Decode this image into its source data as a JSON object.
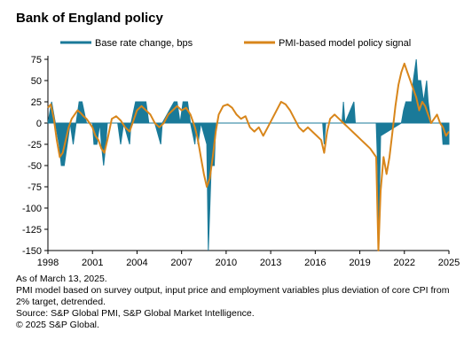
{
  "title": "Bank of England policy",
  "footnotes": [
    "As of March 13, 2025.",
    "PMI model based on survey output, input price and employment variables plus deviation of core CPI from 2% target, detrended.",
    "Source: S&P Global PMI, S&P Global Market Intelligence.",
    "© 2025 S&P Global."
  ],
  "chart_data": {
    "type": "area+line",
    "title": "Bank of England policy",
    "xlabel": "",
    "ylabel": "",
    "xlim": [
      1998,
      2025
    ],
    "ylim": [
      -150,
      75
    ],
    "xticks": [
      1998,
      2001,
      2004,
      2007,
      2010,
      2013,
      2016,
      2019,
      2022,
      2025
    ],
    "yticks": [
      75,
      50,
      25,
      0,
      -25,
      -50,
      -75,
      -100,
      -125,
      -150
    ],
    "grid": false,
    "legend_position": "top",
    "series": [
      {
        "name": "Base rate change, bps",
        "type": "area",
        "color": "#1a7a99",
        "points": [
          [
            1998.0,
            0
          ],
          [
            1998.25,
            25
          ],
          [
            1998.5,
            0
          ],
          [
            1998.75,
            -25
          ],
          [
            1998.9,
            -50
          ],
          [
            1999.1,
            -50
          ],
          [
            1999.3,
            -25
          ],
          [
            1999.5,
            0
          ],
          [
            1999.7,
            -25
          ],
          [
            1999.9,
            0
          ],
          [
            2000.1,
            25
          ],
          [
            2000.3,
            25
          ],
          [
            2000.6,
            0
          ],
          [
            2001.0,
            0
          ],
          [
            2001.1,
            -25
          ],
          [
            2001.3,
            -25
          ],
          [
            2001.5,
            0
          ],
          [
            2001.6,
            -25
          ],
          [
            2001.75,
            -50
          ],
          [
            2001.9,
            -25
          ],
          [
            2002.0,
            0
          ],
          [
            2002.7,
            0
          ],
          [
            2002.9,
            -25
          ],
          [
            2003.1,
            0
          ],
          [
            2003.5,
            -25
          ],
          [
            2003.6,
            0
          ],
          [
            2003.9,
            25
          ],
          [
            2004.1,
            25
          ],
          [
            2004.3,
            25
          ],
          [
            2004.6,
            25
          ],
          [
            2004.8,
            0
          ],
          [
            2005.2,
            0
          ],
          [
            2005.6,
            -25
          ],
          [
            2005.7,
            0
          ],
          [
            2006.5,
            25
          ],
          [
            2006.7,
            25
          ],
          [
            2006.9,
            0
          ],
          [
            2007.1,
            25
          ],
          [
            2007.4,
            25
          ],
          [
            2007.6,
            0
          ],
          [
            2007.9,
            -25
          ],
          [
            2008.0,
            0
          ],
          [
            2008.1,
            -25
          ],
          [
            2008.3,
            0
          ],
          [
            2008.7,
            -25
          ],
          [
            2008.8,
            -150
          ],
          [
            2008.9,
            -100
          ],
          [
            2009.0,
            -50
          ],
          [
            2009.1,
            -50
          ],
          [
            2009.2,
            -50
          ],
          [
            2009.3,
            0
          ],
          [
            2016.5,
            0
          ],
          [
            2016.6,
            -25
          ],
          [
            2016.7,
            0
          ],
          [
            2017.8,
            0
          ],
          [
            2017.9,
            25
          ],
          [
            2018.0,
            0
          ],
          [
            2018.6,
            25
          ],
          [
            2018.7,
            0
          ],
          [
            2020.1,
            0
          ],
          [
            2020.2,
            -50
          ],
          [
            2020.25,
            -150
          ],
          [
            2020.4,
            -15
          ],
          [
            2021.8,
            0
          ],
          [
            2021.95,
            15
          ],
          [
            2022.1,
            25
          ],
          [
            2022.3,
            25
          ],
          [
            2022.5,
            25
          ],
          [
            2022.6,
            50
          ],
          [
            2022.8,
            75
          ],
          [
            2022.9,
            50
          ],
          [
            2023.1,
            50
          ],
          [
            2023.3,
            25
          ],
          [
            2023.5,
            50
          ],
          [
            2023.6,
            25
          ],
          [
            2023.8,
            0
          ],
          [
            2024.5,
            0
          ],
          [
            2024.6,
            -25
          ],
          [
            2024.8,
            -25
          ],
          [
            2024.9,
            -25
          ],
          [
            2025.0,
            -25
          ]
        ]
      },
      {
        "name": "PMI-based model policy signal",
        "type": "line",
        "color": "#d8861b",
        "points": [
          [
            1998.0,
            18
          ],
          [
            1998.2,
            22
          ],
          [
            1998.4,
            5
          ],
          [
            1998.6,
            -20
          ],
          [
            1998.8,
            -40
          ],
          [
            1999.0,
            -35
          ],
          [
            1999.2,
            -20
          ],
          [
            1999.4,
            -5
          ],
          [
            1999.6,
            5
          ],
          [
            1999.8,
            10
          ],
          [
            2000.0,
            15
          ],
          [
            2000.2,
            12
          ],
          [
            2000.4,
            8
          ],
          [
            2000.6,
            5
          ],
          [
            2000.8,
            0
          ],
          [
            2001.0,
            -5
          ],
          [
            2001.2,
            -15
          ],
          [
            2001.4,
            -20
          ],
          [
            2001.6,
            -30
          ],
          [
            2001.8,
            -35
          ],
          [
            2002.0,
            -20
          ],
          [
            2002.3,
            5
          ],
          [
            2002.6,
            8
          ],
          [
            2002.9,
            3
          ],
          [
            2003.2,
            -5
          ],
          [
            2003.5,
            -10
          ],
          [
            2003.8,
            5
          ],
          [
            2004.0,
            15
          ],
          [
            2004.3,
            20
          ],
          [
            2004.6,
            15
          ],
          [
            2004.9,
            10
          ],
          [
            2005.2,
            0
          ],
          [
            2005.5,
            -5
          ],
          [
            2005.8,
            0
          ],
          [
            2006.1,
            10
          ],
          [
            2006.4,
            15
          ],
          [
            2006.7,
            20
          ],
          [
            2007.0,
            15
          ],
          [
            2007.3,
            18
          ],
          [
            2007.6,
            10
          ],
          [
            2007.9,
            -5
          ],
          [
            2008.1,
            -20
          ],
          [
            2008.3,
            -40
          ],
          [
            2008.5,
            -60
          ],
          [
            2008.7,
            -75
          ],
          [
            2008.9,
            -65
          ],
          [
            2009.1,
            -40
          ],
          [
            2009.3,
            -10
          ],
          [
            2009.5,
            10
          ],
          [
            2009.8,
            20
          ],
          [
            2010.1,
            22
          ],
          [
            2010.4,
            18
          ],
          [
            2010.7,
            10
          ],
          [
            2011.0,
            5
          ],
          [
            2011.3,
            8
          ],
          [
            2011.6,
            -5
          ],
          [
            2011.9,
            -10
          ],
          [
            2012.2,
            -5
          ],
          [
            2012.5,
            -15
          ],
          [
            2012.8,
            -5
          ],
          [
            2013.1,
            5
          ],
          [
            2013.4,
            15
          ],
          [
            2013.7,
            25
          ],
          [
            2014.0,
            22
          ],
          [
            2014.3,
            15
          ],
          [
            2014.6,
            5
          ],
          [
            2014.9,
            -5
          ],
          [
            2015.2,
            -10
          ],
          [
            2015.5,
            -5
          ],
          [
            2015.8,
            -10
          ],
          [
            2016.1,
            -15
          ],
          [
            2016.4,
            -20
          ],
          [
            2016.6,
            -35
          ],
          [
            2016.8,
            -10
          ],
          [
            2017.0,
            5
          ],
          [
            2017.3,
            10
          ],
          [
            2017.6,
            5
          ],
          [
            2017.9,
            0
          ],
          [
            2018.2,
            -5
          ],
          [
            2018.5,
            -10
          ],
          [
            2018.8,
            -15
          ],
          [
            2019.1,
            -20
          ],
          [
            2019.4,
            -25
          ],
          [
            2019.7,
            -30
          ],
          [
            2019.9,
            -35
          ],
          [
            2020.1,
            -40
          ],
          [
            2020.25,
            -150
          ],
          [
            2020.4,
            -80
          ],
          [
            2020.6,
            -40
          ],
          [
            2020.8,
            -60
          ],
          [
            2021.0,
            -40
          ],
          [
            2021.2,
            -10
          ],
          [
            2021.4,
            20
          ],
          [
            2021.6,
            45
          ],
          [
            2021.8,
            60
          ],
          [
            2022.0,
            70
          ],
          [
            2022.2,
            60
          ],
          [
            2022.4,
            50
          ],
          [
            2022.6,
            40
          ],
          [
            2022.8,
            30
          ],
          [
            2023.0,
            15
          ],
          [
            2023.2,
            25
          ],
          [
            2023.4,
            20
          ],
          [
            2023.6,
            10
          ],
          [
            2023.8,
            0
          ],
          [
            2024.0,
            5
          ],
          [
            2024.2,
            10
          ],
          [
            2024.4,
            0
          ],
          [
            2024.6,
            -5
          ],
          [
            2024.8,
            -15
          ],
          [
            2025.0,
            -10
          ]
        ]
      }
    ]
  }
}
